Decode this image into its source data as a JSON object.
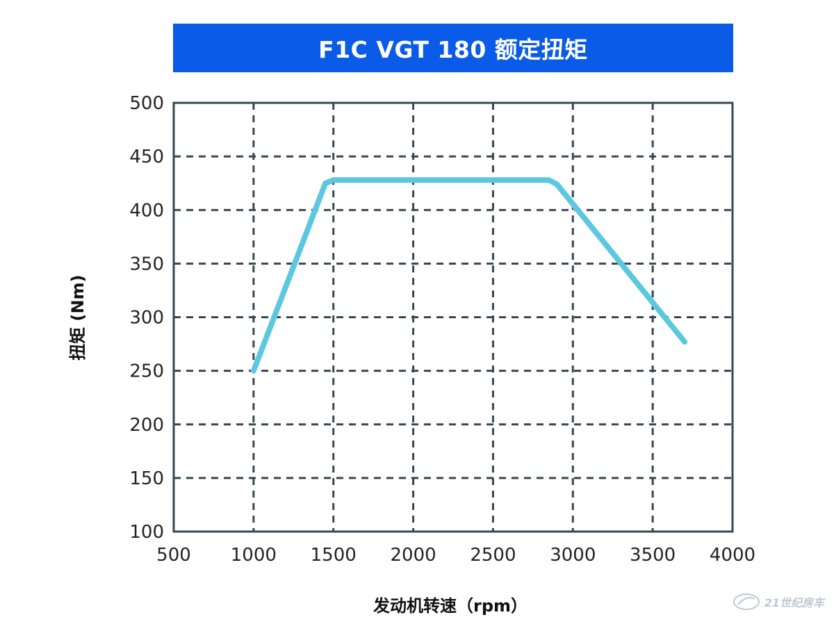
{
  "colors": {
    "title_bg": "#0a5be8",
    "title_text": "#ffffff",
    "axis": "#37474f",
    "grid": "#37474f",
    "line": "#5bc8e0",
    "text": "#222222"
  },
  "chart_data": {
    "type": "line",
    "title": "F1C VGT 180 额定扭矩",
    "xlabel": "发动机转速（rpm）",
    "ylabel": "扭矩 (Nm)",
    "xlim": [
      500,
      4000
    ],
    "ylim": [
      100,
      500
    ],
    "xticks": [
      500,
      1000,
      1500,
      2000,
      2500,
      3000,
      3500,
      4000
    ],
    "yticks": [
      100,
      150,
      200,
      250,
      300,
      350,
      400,
      450,
      500
    ],
    "grid": true,
    "grid_style": "dashed",
    "series": [
      {
        "color": "#5bc8e0",
        "x": [
          1000,
          1450,
          1500,
          2850,
          2900,
          3700
        ],
        "y": [
          250,
          425,
          428,
          428,
          424,
          277
        ]
      }
    ]
  },
  "watermark": {
    "text": "21世纪房车"
  }
}
